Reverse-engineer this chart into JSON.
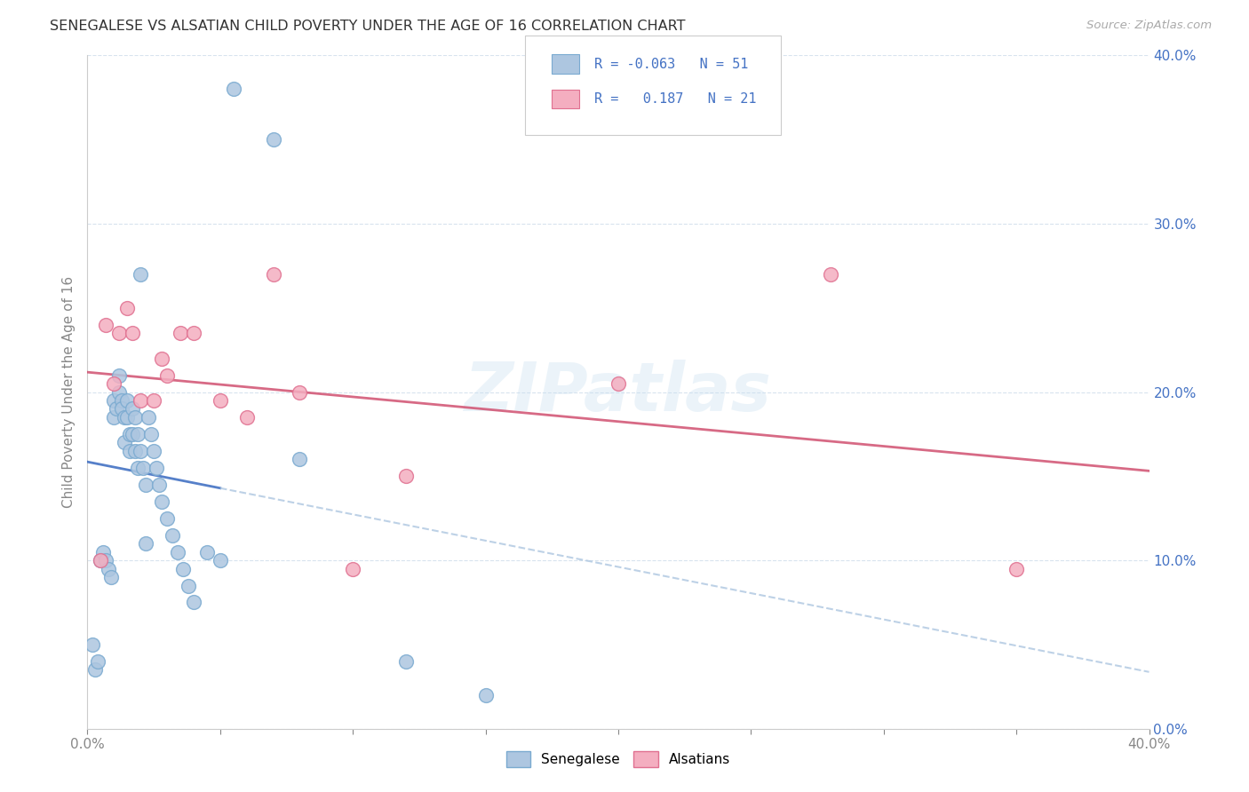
{
  "title": "SENEGALESE VS ALSATIAN CHILD POVERTY UNDER THE AGE OF 16 CORRELATION CHART",
  "source": "Source: ZipAtlas.com",
  "ylabel": "Child Poverty Under the Age of 16",
  "xlim": [
    0.0,
    0.4
  ],
  "ylim": [
    0.0,
    0.4
  ],
  "xtick_vals": [
    0.0,
    0.05,
    0.1,
    0.15,
    0.2,
    0.25,
    0.3,
    0.35,
    0.4
  ],
  "xtick_labels": [
    "0.0%",
    "",
    "",
    "",
    "",
    "",
    "",
    "",
    "40.0%"
  ],
  "ytick_vals": [
    0.0,
    0.1,
    0.2,
    0.3,
    0.4
  ],
  "ytick_labels_left": [
    "",
    "",
    "",
    "",
    ""
  ],
  "ytick_labels_right": [
    "0.0%",
    "10.0%",
    "20.0%",
    "30.0%",
    "40.0%"
  ],
  "watermark": "ZIPatlas",
  "legend_R_senegalese": "-0.063",
  "legend_N_senegalese": "51",
  "legend_R_alsatian": "0.187",
  "legend_N_alsatian": "21",
  "color_senegalese_fill": "#adc6e0",
  "color_senegalese_edge": "#7aaad0",
  "color_alsatian_fill": "#f4aec0",
  "color_alsatian_edge": "#e07090",
  "color_line_senegalese_solid": "#4472C4",
  "color_line_senegalese_dash": "#adc6e0",
  "color_line_alsatian": "#d05070",
  "color_blue_text": "#4472C4",
  "color_gray_text": "#888888",
  "background_color": "#ffffff",
  "senegalese_x": [
    0.002,
    0.003,
    0.004,
    0.005,
    0.006,
    0.007,
    0.008,
    0.009,
    0.01,
    0.01,
    0.011,
    0.012,
    0.012,
    0.013,
    0.013,
    0.014,
    0.014,
    0.015,
    0.015,
    0.016,
    0.016,
    0.017,
    0.017,
    0.018,
    0.018,
    0.019,
    0.019,
    0.02,
    0.02,
    0.021,
    0.022,
    0.022,
    0.023,
    0.024,
    0.025,
    0.026,
    0.027,
    0.028,
    0.03,
    0.032,
    0.034,
    0.036,
    0.038,
    0.04,
    0.045,
    0.05,
    0.055,
    0.07,
    0.08,
    0.12,
    0.15
  ],
  "senegalese_y": [
    0.05,
    0.035,
    0.04,
    0.1,
    0.105,
    0.1,
    0.095,
    0.09,
    0.195,
    0.185,
    0.19,
    0.21,
    0.2,
    0.195,
    0.19,
    0.185,
    0.17,
    0.195,
    0.185,
    0.175,
    0.165,
    0.19,
    0.175,
    0.185,
    0.165,
    0.175,
    0.155,
    0.27,
    0.165,
    0.155,
    0.145,
    0.11,
    0.185,
    0.175,
    0.165,
    0.155,
    0.145,
    0.135,
    0.125,
    0.115,
    0.105,
    0.095,
    0.085,
    0.075,
    0.105,
    0.1,
    0.38,
    0.35,
    0.16,
    0.04,
    0.02
  ],
  "alsatian_x": [
    0.005,
    0.007,
    0.01,
    0.012,
    0.015,
    0.017,
    0.02,
    0.025,
    0.028,
    0.03,
    0.035,
    0.04,
    0.05,
    0.06,
    0.07,
    0.08,
    0.1,
    0.12,
    0.2,
    0.28,
    0.35
  ],
  "alsatian_y": [
    0.1,
    0.24,
    0.205,
    0.235,
    0.25,
    0.235,
    0.195,
    0.195,
    0.22,
    0.21,
    0.235,
    0.235,
    0.195,
    0.185,
    0.27,
    0.2,
    0.095,
    0.15,
    0.205,
    0.27,
    0.095
  ]
}
